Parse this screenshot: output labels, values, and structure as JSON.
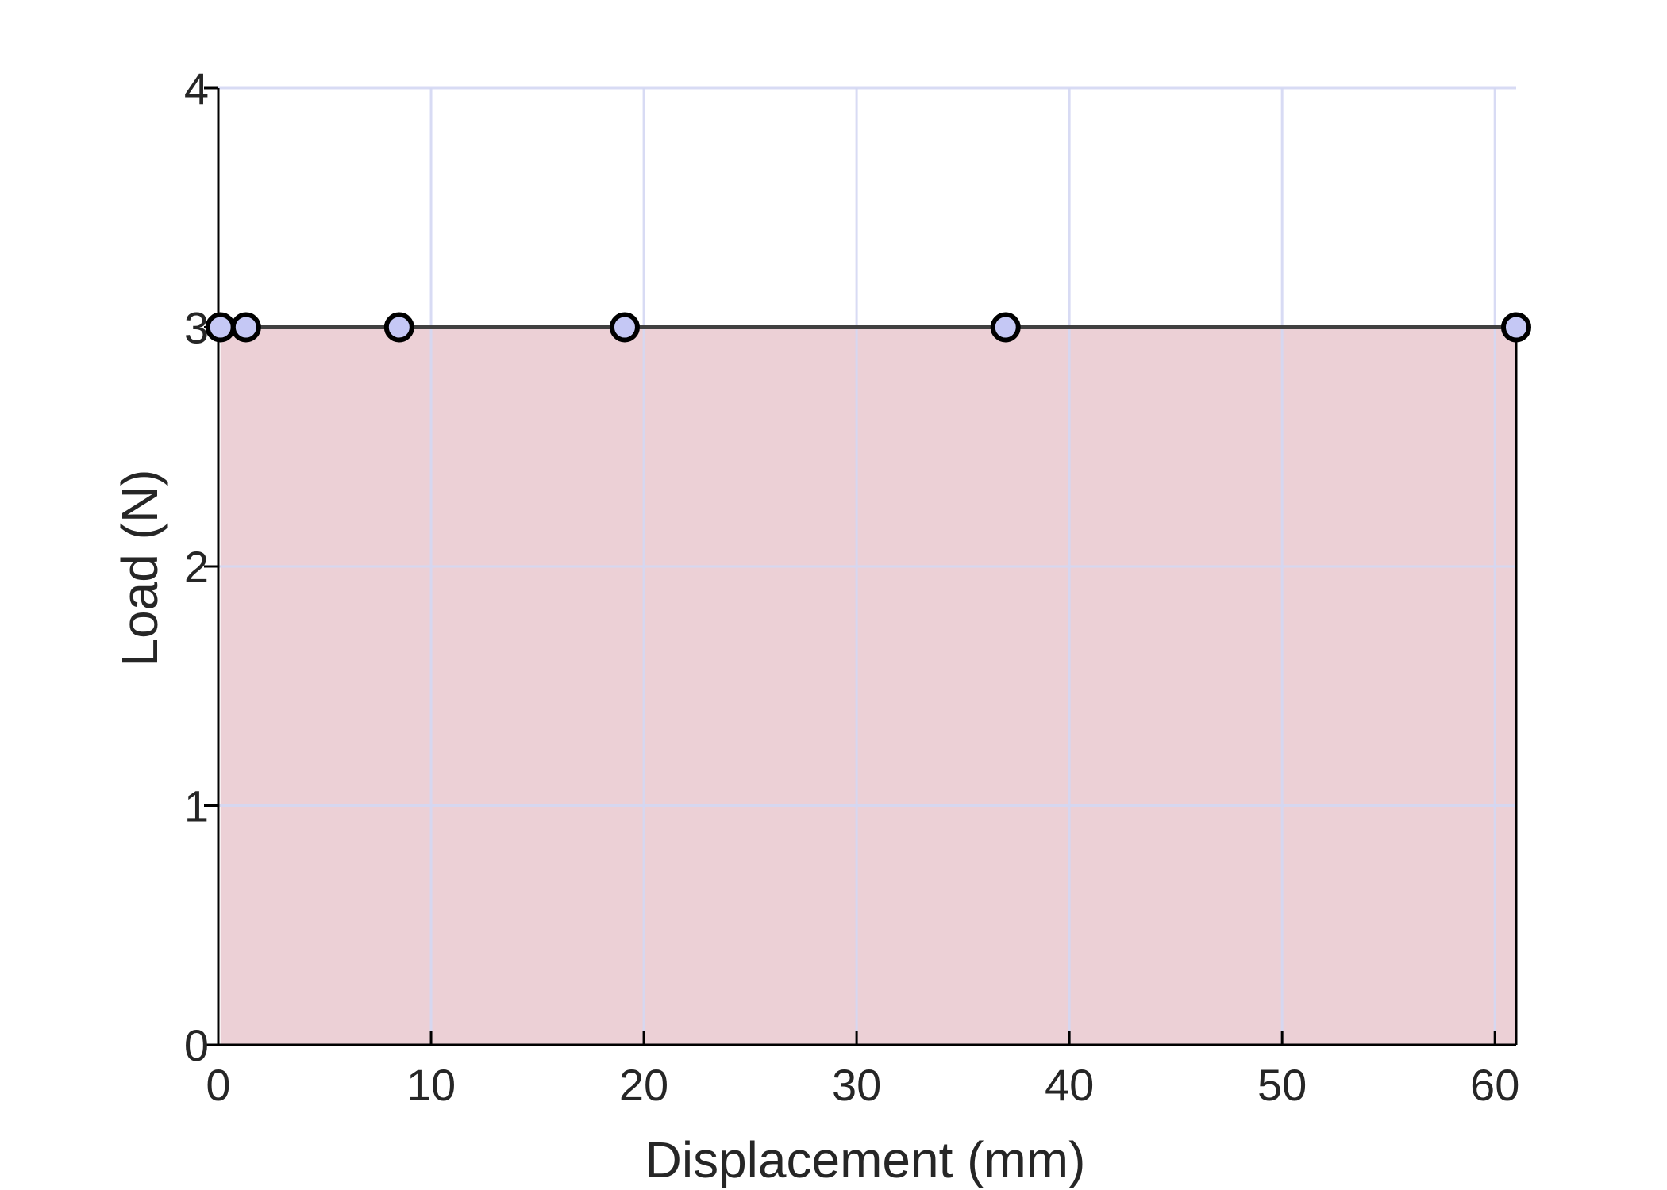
{
  "chart_data": {
    "type": "area",
    "title": "",
    "xlabel": "Displacement (mm)",
    "ylabel": "Load (N)",
    "xlim": [
      0,
      61
    ],
    "ylim": [
      0,
      4
    ],
    "xticks": [
      0,
      10,
      20,
      30,
      40,
      50,
      60
    ],
    "yticks": [
      0,
      1,
      2,
      3,
      4
    ],
    "grid": true,
    "series": [
      {
        "x": [
          0.1,
          1.3,
          8.5,
          19.1,
          37.0,
          61.0
        ],
        "y": [
          3,
          3,
          3,
          3,
          3,
          3
        ]
      }
    ],
    "colors": {
      "fill": "#ecd0d6",
      "line": "#404040",
      "marker_fill": "#c5c8f5",
      "marker_edge": "#000000",
      "grid": "#d4d8f3",
      "axis": "#000000",
      "text": "#262626"
    }
  }
}
